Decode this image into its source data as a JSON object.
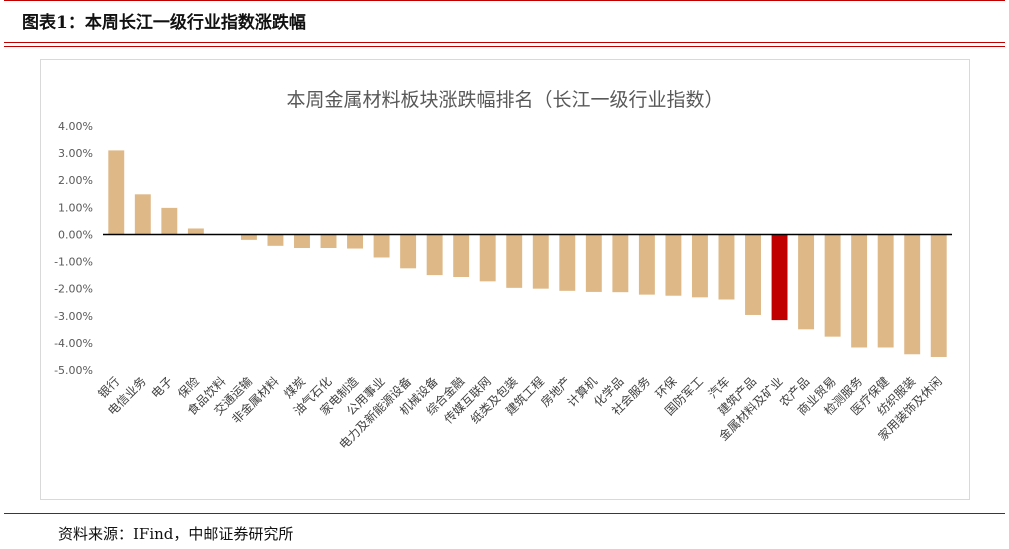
{
  "header": {
    "title": "图表1：本周长江一级行业指数涨跌幅"
  },
  "footer": {
    "source": "资料来源：IFind，中邮证券研究所"
  },
  "colors": {
    "bar": "#deb887",
    "highlight": "#c00000",
    "axis": "#000000",
    "rule": "#c00000"
  },
  "chart_data": {
    "type": "bar",
    "title": "本周金属材料板块涨跌幅排名（长江一级行业指数）",
    "xlabel": "",
    "ylabel": "",
    "ylim": [
      -5,
      4
    ],
    "yticks": [
      "4.00%",
      "3.00%",
      "2.00%",
      "1.00%",
      "0.00%",
      "-1.00%",
      "-2.00%",
      "-3.00%",
      "-4.00%",
      "-5.00%"
    ],
    "grid": false,
    "legend": "none",
    "highlight_category": "金属材料及矿业",
    "categories": [
      "银行",
      "电信业务",
      "电子",
      "保险",
      "食品饮料",
      "交通运输",
      "非金属材料",
      "煤炭",
      "油气石化",
      "家电制造",
      "公用事业",
      "电力及新能源设备",
      "机械设备",
      "综合金融",
      "传媒互联网",
      "纸类及包装",
      "建筑工程",
      "房地产",
      "计算机",
      "化学品",
      "社会服务",
      "环保",
      "国防军工",
      "汽车",
      "建筑产品",
      "金属材料及矿业",
      "农产品",
      "商业贸易",
      "检测服务",
      "医疗保健",
      "纺织服装",
      "家用装饰及休闲"
    ],
    "values": [
      3.1,
      1.48,
      0.98,
      0.22,
      0.0,
      -0.2,
      -0.42,
      -0.5,
      -0.5,
      -0.52,
      -0.85,
      -1.25,
      -1.5,
      -1.57,
      -1.73,
      -1.97,
      -2.0,
      -2.08,
      -2.12,
      -2.13,
      -2.22,
      -2.26,
      -2.32,
      -2.4,
      -2.97,
      -3.16,
      -3.5,
      -3.77,
      -4.17,
      -4.17,
      -4.42,
      -4.52
    ]
  }
}
